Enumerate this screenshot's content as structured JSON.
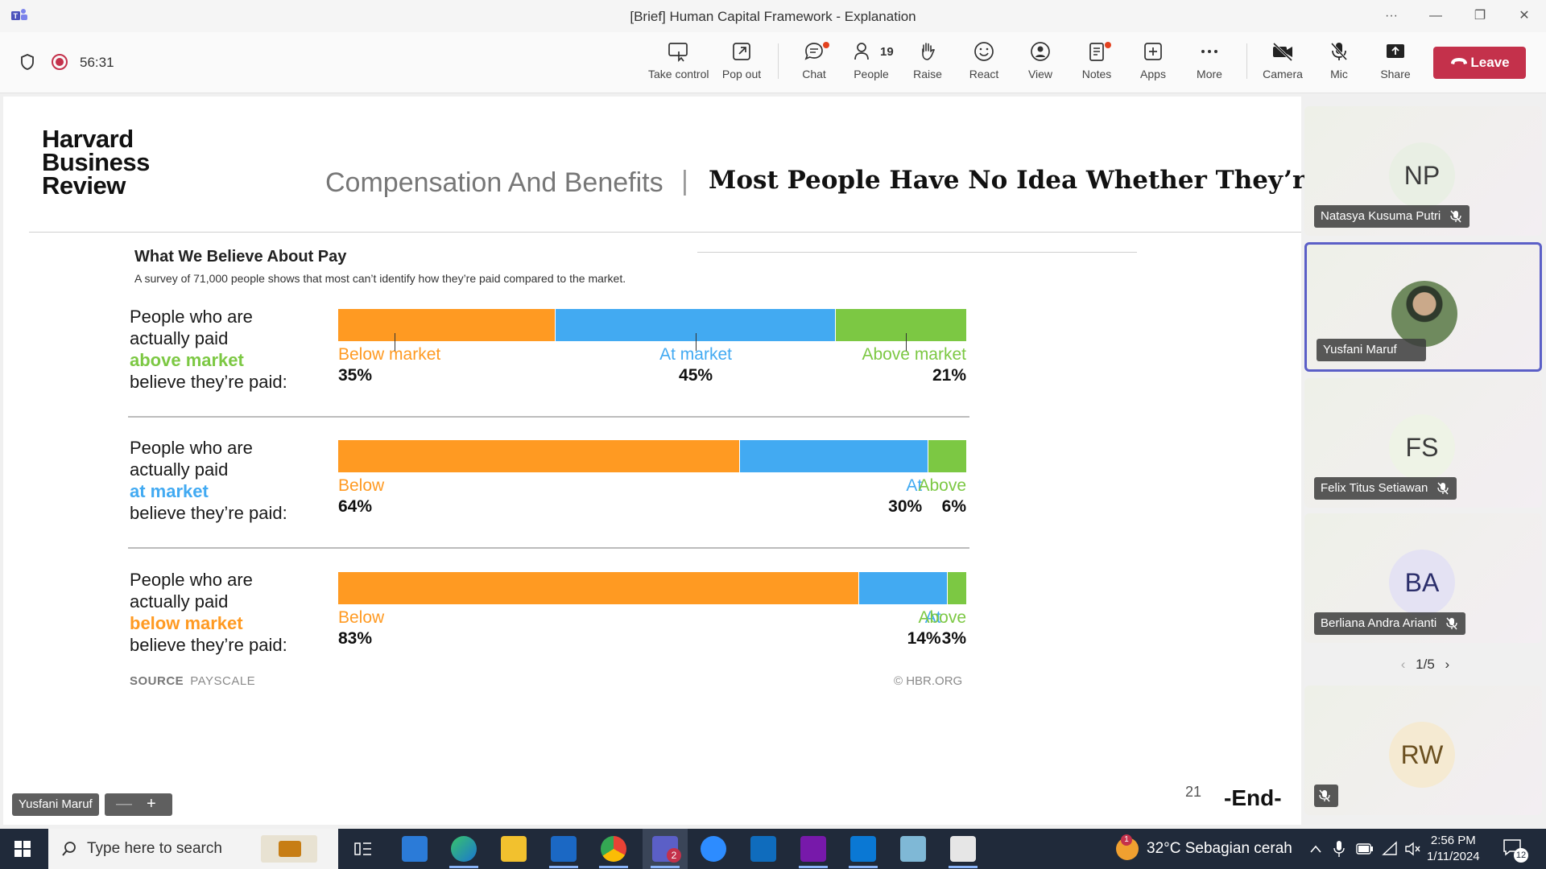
{
  "window": {
    "title": "[Brief] Human Capital Framework - Explanation",
    "more": "···",
    "minimize": "—",
    "restore": "❐",
    "close": "✕"
  },
  "toolbar": {
    "timer": "56:31",
    "buttons": {
      "take_control": "Take control",
      "pop_out": "Pop out",
      "chat": "Chat",
      "people": "People",
      "people_count": "19",
      "raise": "Raise",
      "react": "React",
      "view": "View",
      "notes": "Notes",
      "apps": "Apps",
      "more": "More",
      "camera": "Camera",
      "mic": "Mic",
      "share": "Share"
    },
    "leave": "Leave",
    "colors": {
      "leave": "#c4314b",
      "record": "#c4314b",
      "notification_dot": "#e3421f"
    }
  },
  "slide": {
    "publisher": "Harvard Business Review",
    "publisher_lines": [
      "Harvard",
      "Business",
      "Review"
    ],
    "category": "Compensation And Benefits",
    "divider": "|",
    "headline": "Most People Have No Idea Whether They’re ...",
    "slide_number": "21",
    "end_text": "-End-"
  },
  "chart_data": {
    "type": "bar",
    "stacked": true,
    "orientation": "horizontal",
    "title": "What We Believe About Pay",
    "subtitle": "A survey of 71,000 people shows that most can’t identify how they’re paid compared to the market.",
    "categories": [
      "above market",
      "at market",
      "below market"
    ],
    "category_prefix": "People who are actually paid",
    "category_suffix": "believe they’re paid:",
    "series": [
      {
        "name": "Below market",
        "short_name": "Below",
        "color": "#ff9a22",
        "values": [
          35,
          64,
          83
        ]
      },
      {
        "name": "At market",
        "short_name": "At",
        "color": "#42aaf2",
        "values": [
          45,
          30,
          14
        ]
      },
      {
        "name": "Above market",
        "short_name": "Above",
        "color": "#7cc843",
        "values": [
          21,
          6,
          3
        ]
      }
    ],
    "category_colors": [
      "#7cc843",
      "#42aaf2",
      "#ff9a22"
    ],
    "source_label": "SOURCE",
    "source": "PAYSCALE",
    "copyright": "© HBR.ORG"
  },
  "presenter": {
    "name": "Yusfani Maruf",
    "zoom_out": "—",
    "zoom_in": "+"
  },
  "participants": [
    {
      "initials": "NP",
      "name": "Natasya Kusuma Putri",
      "muted": true,
      "avatar_color": "#e9efe4",
      "text_color": "#3b3b3b"
    },
    {
      "initials": "",
      "name": "Yusfani Maruf",
      "muted": false,
      "photo": true,
      "active_speaker": true
    },
    {
      "initials": "FS",
      "name": "Felix Titus Setiawan",
      "muted": true,
      "avatar_color": "#eef3e6",
      "text_color": "#3b3b3b"
    },
    {
      "initials": "BA",
      "name": "Berliana Andra Arianti",
      "muted": true,
      "avatar_color": "#e4e2f3",
      "text_color": "#2c2f6b"
    },
    {
      "initials": "RW",
      "name": "",
      "muted": true,
      "avatar_color": "#f5ead2",
      "text_color": "#6b5020"
    }
  ],
  "pager": {
    "label": "1/5",
    "prev": "‹",
    "next": "›"
  },
  "taskbar": {
    "search_placeholder": "Type here to search",
    "weather": "32°C  Sebagian cerah",
    "time": "2:56 PM",
    "date": "1/11/2024",
    "notifications": "12",
    "teams_badge": "2",
    "weather_badge": "1",
    "apps": [
      "start-icon",
      "search-icon",
      "widgets-icon",
      "task-view-icon",
      "desktop-icon",
      "edge-icon",
      "file-explorer-icon",
      "outlook-icon",
      "chrome-icon",
      "teams-icon",
      "zoom-icon",
      "defender-icon",
      "onenote-icon",
      "vscode-icon",
      "notepad-icon",
      "calculator-icon"
    ]
  }
}
